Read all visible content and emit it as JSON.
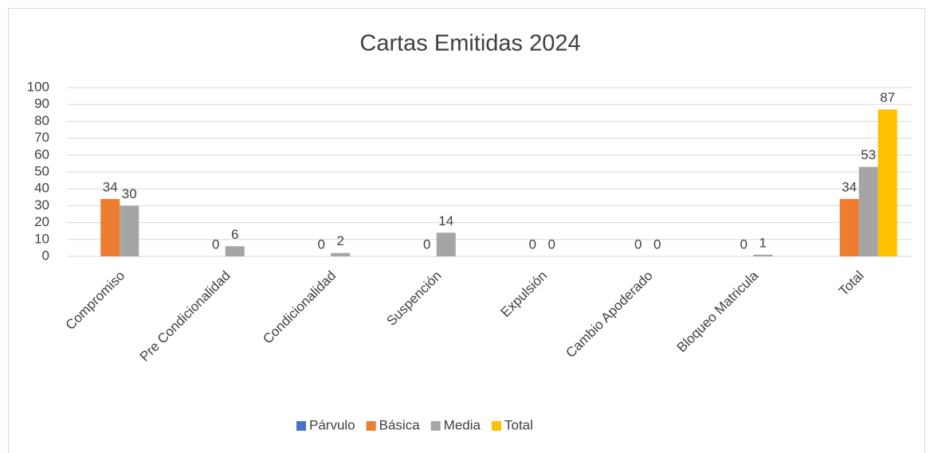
{
  "chart_data": {
    "type": "bar",
    "title": "Cartas Emitidas 2024",
    "categories": [
      "Compromiso",
      "Pre Condicionalidad",
      "Condicionalidad",
      "Suspención",
      "Expulsión",
      "Cambio Apoderado",
      "Bloqueo Matricula",
      "Total"
    ],
    "series": [
      {
        "name": "Párvulo",
        "color": "#4472c4",
        "values": [
          null,
          null,
          null,
          null,
          null,
          null,
          null,
          null
        ]
      },
      {
        "name": "Básica",
        "color": "#ed7d31",
        "values": [
          34,
          0,
          0,
          0,
          0,
          0,
          0,
          34
        ]
      },
      {
        "name": "Media",
        "color": "#a5a5a5",
        "values": [
          30,
          6,
          2,
          14,
          0,
          0,
          1,
          53
        ]
      },
      {
        "name": "Total",
        "color": "#ffc000",
        "values": [
          null,
          null,
          null,
          null,
          null,
          null,
          null,
          87
        ]
      }
    ],
    "ylim": [
      0,
      100
    ],
    "yticks": [
      0,
      10,
      20,
      30,
      40,
      50,
      60,
      70,
      80,
      90,
      100
    ],
    "grid": true,
    "data_labels": true,
    "legend": "bottom"
  }
}
